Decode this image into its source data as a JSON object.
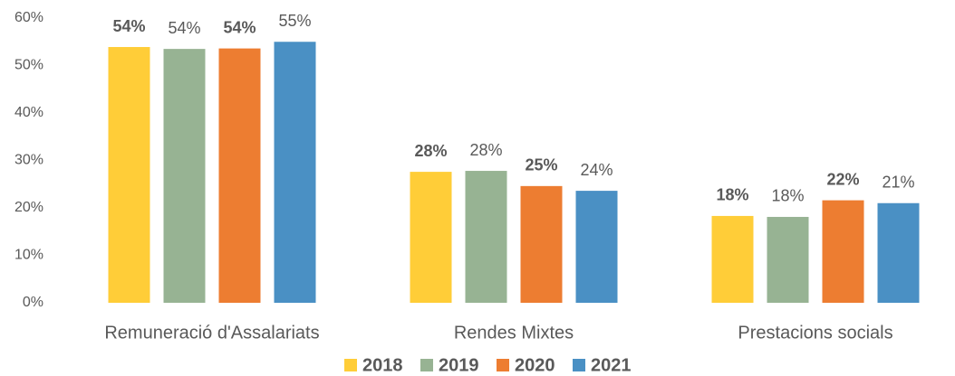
{
  "chart_data": {
    "type": "bar",
    "categories": [
      "Remuneració d'Assalariats",
      "Rendes Mixtes",
      "Prestacions socials"
    ],
    "series": [
      {
        "name": "2018",
        "color": "#FFCD38",
        "label_bold": true,
        "values": [
          53.9,
          27.6,
          18.3
        ],
        "value_labels": [
          "54%",
          "28%",
          "18%"
        ]
      },
      {
        "name": "2019",
        "color": "#97B393",
        "label_bold": false,
        "values": [
          53.5,
          27.8,
          18.1
        ],
        "value_labels": [
          "54%",
          "28%",
          "18%"
        ]
      },
      {
        "name": "2020",
        "color": "#ED7D31",
        "label_bold": true,
        "values": [
          53.6,
          24.6,
          21.6
        ],
        "value_labels": [
          "54%",
          "25%",
          "22%"
        ]
      },
      {
        "name": "2021",
        "color": "#4A90C4",
        "label_bold": false,
        "values": [
          55.0,
          23.6,
          21.0
        ],
        "value_labels": [
          "55%",
          "24%",
          "21%"
        ]
      }
    ],
    "ylim": [
      0,
      60
    ],
    "yticks": [
      {
        "value": 0,
        "label": "0%"
      },
      {
        "value": 10,
        "label": "10%"
      },
      {
        "value": 20,
        "label": "20%"
      },
      {
        "value": 30,
        "label": "30%"
      },
      {
        "value": 40,
        "label": "40%"
      },
      {
        "value": 50,
        "label": "50%"
      },
      {
        "value": 60,
        "label": "60%"
      }
    ],
    "grid": false,
    "legend": "bottom"
  }
}
